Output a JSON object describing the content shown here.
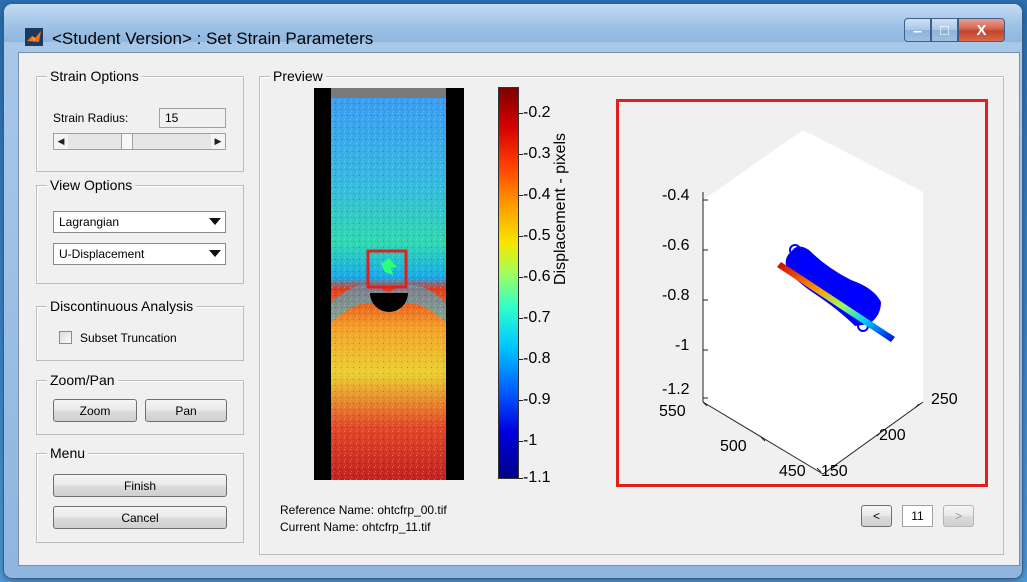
{
  "window": {
    "title": "<Student Version> : Set Strain Parameters",
    "minimize_glyph": "–",
    "maximize_glyph": "□",
    "close_glyph": "X"
  },
  "strain_options": {
    "title": "Strain Options",
    "radius_label": "Strain Radius:",
    "radius_value": "15",
    "slider_left": "◀",
    "slider_right": "▶"
  },
  "view_options": {
    "title": "View Options",
    "mode_selected": "Lagrangian",
    "field_selected": "U-Displacement"
  },
  "discontinuous": {
    "title": "Discontinuous Analysis",
    "checkbox_label": "Subset Truncation"
  },
  "zoom_pan": {
    "title": "Zoom/Pan",
    "zoom_label": "Zoom",
    "pan_label": "Pan"
  },
  "menu": {
    "title": "Menu",
    "finish_label": "Finish",
    "cancel_label": "Cancel"
  },
  "preview": {
    "title": "Preview",
    "reference_name": "Reference Name: ohtcfrp_00.tif",
    "current_name": "Current Name: ohtcfrp_11.tif",
    "prev_label": "<",
    "page_value": "11",
    "next_label": ">"
  },
  "colorbar": {
    "ticks": [
      "-0.2",
      "-0.3",
      "-0.4",
      "-0.5",
      "-0.6",
      "-0.7",
      "-0.8",
      "-0.9",
      "-1",
      "-1.1"
    ]
  },
  "plot3d": {
    "zlabel": "Displacement - pixels",
    "z_ticks": [
      "-0.4",
      "-0.6",
      "-0.8",
      "-1",
      "-1.2"
    ],
    "x_ticks": [
      "550",
      "500",
      "450"
    ],
    "y_ticks": [
      "150",
      "200",
      "250"
    ]
  },
  "colors": {
    "highlight_red": "#e21f1f",
    "point_blue": "#0000ff"
  }
}
